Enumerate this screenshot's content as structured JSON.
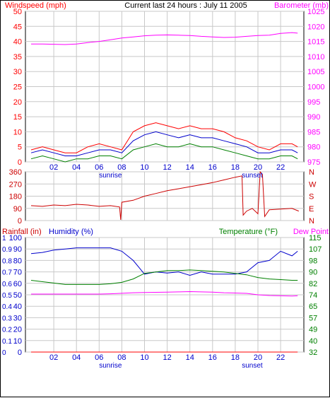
{
  "page_title": "Current last 24 hours : July 11 2005",
  "colors": {
    "red": "#ff0000",
    "dark_red": "#cc0000",
    "magenta": "#ff00ff",
    "blue": "#0000cc",
    "green": "#008000",
    "grid": "#c8c8c8"
  },
  "hour_ticks": [
    "02",
    "04",
    "06",
    "08",
    "10",
    "12",
    "14",
    "16",
    "18",
    "20",
    "22"
  ],
  "sunrise_label": "sunrise",
  "sunset_label": "sunset",
  "chart_data": [
    {
      "id": "wind",
      "type": "line",
      "left_label": "Windspeed (mph)",
      "right_label": "Barometer (mb)",
      "y_left_ticks": [
        0,
        5,
        10,
        15,
        20,
        25,
        30,
        35,
        40,
        45,
        50
      ],
      "y_right_ticks": [
        975,
        980,
        985,
        990,
        995,
        1000,
        1005,
        1010,
        1015,
        1020,
        1025
      ],
      "ylim_left": [
        0,
        50
      ],
      "ylim_right": [
        974,
        1027
      ],
      "series": [
        {
          "color": "#ff00ff",
          "axis": "right",
          "x": [
            0,
            1,
            2,
            3,
            4,
            5,
            6,
            7,
            8,
            9,
            10,
            11,
            12,
            13,
            14,
            15,
            16,
            17,
            18,
            19,
            20,
            21,
            22,
            23,
            23.5
          ],
          "y": [
            1015.5,
            1015.5,
            1015.4,
            1015.3,
            1015.5,
            1016,
            1016.4,
            1017,
            1017.6,
            1018,
            1018.4,
            1018.6,
            1018.7,
            1018.6,
            1018.5,
            1018.2,
            1018,
            1017.8,
            1017.9,
            1018.2,
            1018.5,
            1018.6,
            1019.2,
            1019.5,
            1019.3
          ]
        },
        {
          "color": "#ff0000",
          "axis": "left",
          "x": [
            0,
            1,
            2,
            3,
            4,
            5,
            6,
            7,
            8,
            9,
            10,
            11,
            12,
            13,
            14,
            15,
            16,
            17,
            18,
            19,
            20,
            21,
            22,
            23,
            23.5
          ],
          "y": [
            4,
            5,
            4,
            3,
            3,
            5,
            6,
            5,
            4,
            10,
            12,
            13,
            12,
            11,
            12,
            11,
            11,
            10,
            8,
            7,
            5,
            4,
            6,
            6,
            5
          ]
        },
        {
          "color": "#0000cc",
          "axis": "left",
          "x": [
            0,
            1,
            2,
            3,
            4,
            5,
            6,
            7,
            8,
            9,
            10,
            11,
            12,
            13,
            14,
            15,
            16,
            17,
            18,
            19,
            20,
            21,
            22,
            23,
            23.5
          ],
          "y": [
            3,
            4,
            3,
            2,
            2,
            3,
            4,
            4,
            3,
            7,
            9,
            10,
            9,
            8,
            9,
            8,
            8,
            7,
            6,
            5,
            3,
            3,
            4,
            4,
            3
          ]
        },
        {
          "color": "#008000",
          "axis": "left",
          "x": [
            0,
            1,
            2,
            3,
            4,
            5,
            6,
            7,
            8,
            9,
            10,
            11,
            12,
            13,
            14,
            15,
            16,
            17,
            18,
            19,
            20,
            21,
            22,
            23,
            23.5
          ],
          "y": [
            1,
            2,
            1,
            0,
            1,
            1,
            2,
            2,
            1,
            4,
            5,
            6,
            5,
            5,
            6,
            5,
            5,
            4,
            3,
            2,
            1,
            1,
            2,
            2,
            1
          ]
        }
      ]
    },
    {
      "id": "direction",
      "type": "line",
      "y_left_ticks": [
        0,
        90,
        180,
        270,
        360
      ],
      "y_right_ticks": [
        "N",
        "E",
        "S",
        "W",
        "N"
      ],
      "ylim_left": [
        0,
        360
      ],
      "series": [
        {
          "color": "#cc0000",
          "x": [
            0,
            1,
            2,
            3,
            4,
            5,
            6,
            7,
            7.8,
            7.9,
            8,
            9,
            10,
            11,
            12,
            13,
            14,
            15,
            16,
            17,
            18,
            18.6,
            18.7,
            19,
            19.5,
            20,
            20.2,
            20.4,
            20.6,
            21,
            22,
            23,
            23.6
          ],
          "y": [
            110,
            105,
            115,
            110,
            120,
            115,
            105,
            110,
            100,
            5,
            135,
            150,
            180,
            200,
            220,
            235,
            250,
            265,
            280,
            300,
            320,
            330,
            40,
            70,
            90,
            50,
            360,
            340,
            30,
            80,
            85,
            90,
            70
          ]
        }
      ]
    },
    {
      "id": "temp_humidity",
      "type": "line",
      "left_label_1": "Rainfall (in)",
      "left_label_2": "Humidity (%)",
      "right_label_1": "Temperature (°F)",
      "right_label_2": "Dew Point",
      "y_rain_ticks": [
        "1",
        "0.9",
        "0.8",
        "0.7",
        "0.6",
        "0.5",
        "0.4",
        "0.3",
        "0.2",
        "0.1",
        "0"
      ],
      "y_humidity_ticks": [
        100,
        90,
        80,
        70,
        60,
        50,
        40,
        30,
        20,
        10,
        0
      ],
      "y_temp_ticks": [
        115,
        107,
        98,
        90,
        82,
        74,
        65,
        57,
        49,
        40,
        32
      ],
      "ylim_humidity": [
        0,
        100
      ],
      "ylim_temp": [
        32,
        115
      ],
      "series": [
        {
          "color": "#0000cc",
          "axis": "humidity",
          "x": [
            0,
            1,
            2,
            3,
            4,
            5,
            6,
            7,
            8,
            9,
            10,
            11,
            12,
            13,
            14,
            15,
            16,
            17,
            18,
            19,
            20,
            21,
            22,
            23,
            23.5
          ],
          "y": [
            86,
            87,
            89,
            90,
            91,
            91,
            91,
            91,
            88,
            80,
            68,
            70,
            69,
            70,
            67,
            70,
            68,
            68,
            68,
            70,
            78,
            80,
            88,
            84,
            88
          ]
        },
        {
          "color": "#008000",
          "axis": "temp",
          "x": [
            0,
            1,
            2,
            3,
            4,
            5,
            6,
            7,
            8,
            9,
            10,
            11,
            12,
            13,
            14,
            15,
            16,
            17,
            18,
            19,
            20,
            21,
            22,
            23,
            23.5
          ],
          "y": [
            84,
            83,
            82,
            81,
            81,
            81,
            81,
            81.5,
            82.5,
            85,
            89,
            90,
            91,
            91,
            91.5,
            91,
            90.5,
            90,
            89,
            88,
            86,
            85,
            84.5,
            84,
            84
          ]
        },
        {
          "color": "#ff00ff",
          "axis": "temp",
          "x": [
            0,
            1,
            2,
            3,
            4,
            5,
            6,
            7,
            8,
            9,
            10,
            11,
            12,
            13,
            14,
            15,
            16,
            17,
            18,
            19,
            20,
            21,
            22,
            23,
            23.5
          ],
          "y": [
            74,
            74,
            74,
            74,
            74,
            74,
            74,
            74.2,
            74.6,
            75,
            75.2,
            75.3,
            75.4,
            75.6,
            75.8,
            75.6,
            75.4,
            75,
            74.8,
            74.5,
            73.5,
            73,
            72.8,
            72.6,
            72.8
          ]
        },
        {
          "color": "#ff0000",
          "axis": "humidity",
          "x": [
            0,
            23.5
          ],
          "y": [
            0,
            0
          ]
        }
      ]
    }
  ]
}
